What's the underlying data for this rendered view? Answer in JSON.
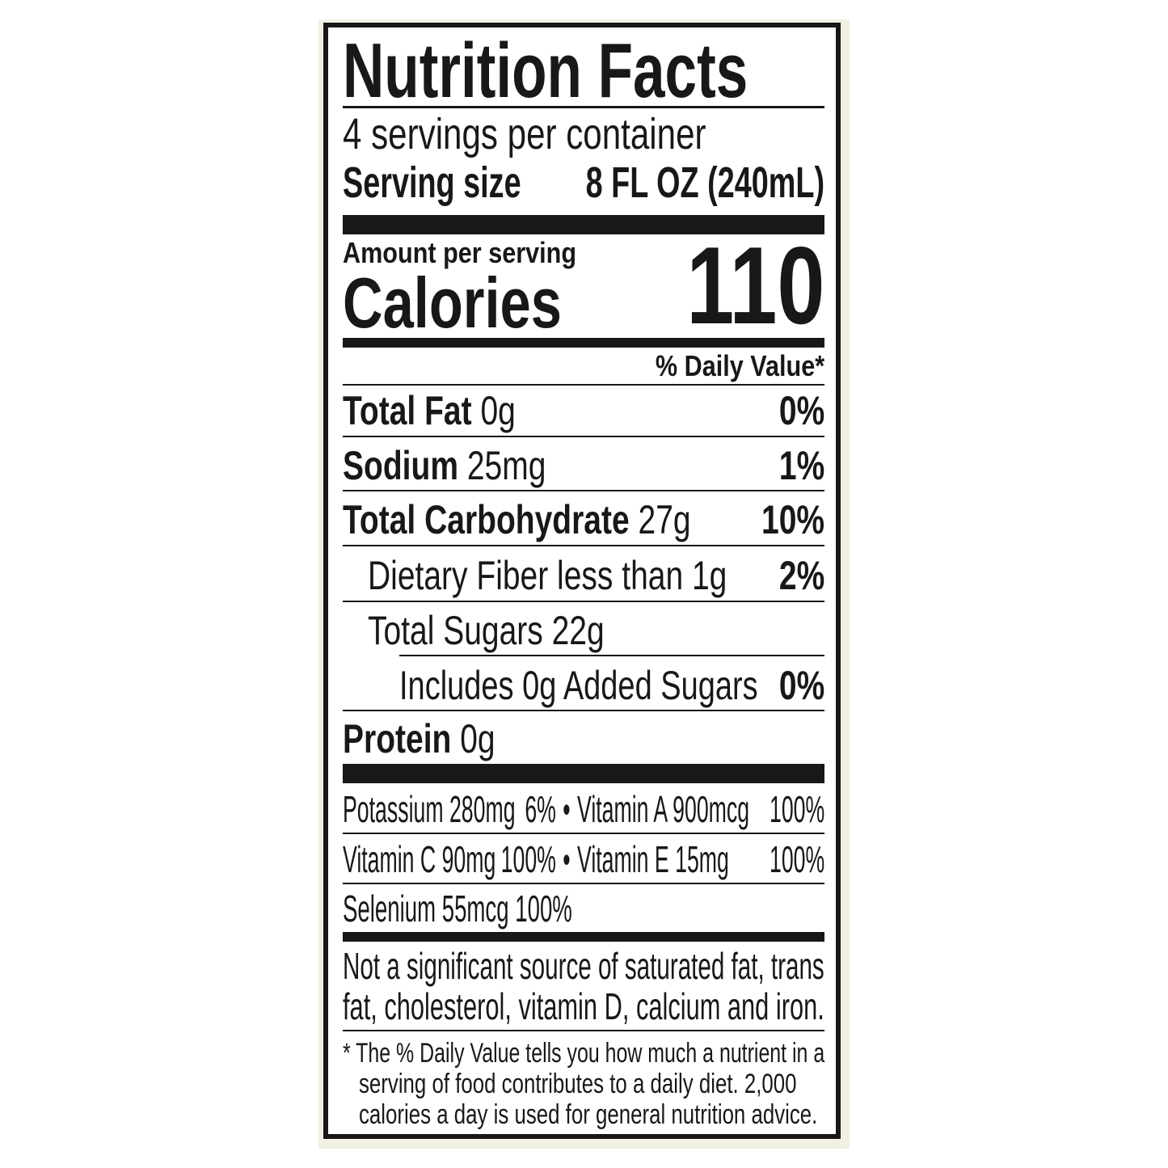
{
  "title": "Nutrition Facts",
  "servings_per_container": "4 servings per container",
  "serving_size_label": "Serving size",
  "serving_size_value": "8 FL OZ (240mL)",
  "amount_per_serving": "Amount per serving",
  "calories_label": "Calories",
  "calories_value": "110",
  "daily_value_header": "% Daily Value*",
  "nutrients": [
    {
      "name": "Total Fat",
      "amount": "0g",
      "dv": "0%"
    },
    {
      "name": "Sodium",
      "amount": "25mg",
      "dv": "1%"
    },
    {
      "name": "Total Carbohydrate",
      "amount": "27g",
      "dv": "10%"
    },
    {
      "name": "Dietary Fiber less than 1g",
      "dv": "2%"
    },
    {
      "name": "Total Sugars 22g"
    },
    {
      "name": "Includes 0g Added Sugars",
      "dv": "0%"
    },
    {
      "name": "Protein",
      "amount": "0g"
    }
  ],
  "micros": [
    {
      "left": "Potassium 280mg",
      "left_dv": "6%",
      "bullet": "•",
      "right": "Vitamin A 900mcg",
      "right_dv": "100%"
    },
    {
      "left": "Vitamin C 90mg",
      "left_dv": "100%",
      "bullet": "•",
      "right": "Vitamin E 15mg",
      "right_dv": "100%"
    },
    {
      "left": "Selenium 55mcg 100%"
    }
  ],
  "not_significant": [
    "Not a significant source of saturated fat, trans",
    "fat, cholesterol, vitamin D, calcium and iron."
  ],
  "footnote": [
    "* The % Daily Value tells you how much a nutrient in a",
    "serving of food contributes to a daily diet. 2,000",
    "calories a day is used for general nutrition advice."
  ]
}
